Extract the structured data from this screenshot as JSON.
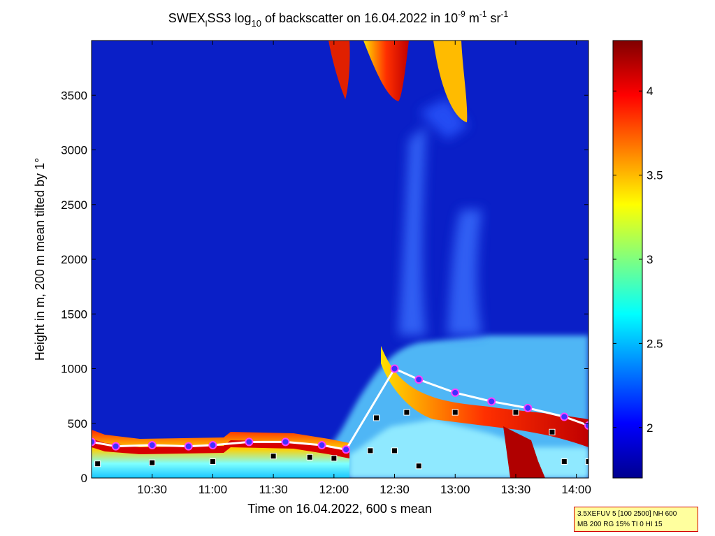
{
  "chart_data": {
    "type": "heatmap",
    "title": {
      "prefix": "SWEX",
      "prefix_sub": "l",
      "part1": "SS3 log",
      "log_sub": "10",
      "part2": " of backscatter on 16.04.2022 in 10",
      "exp1": "-9",
      "part3": " m",
      "exp2": "-1",
      "part4": " sr",
      "exp3": "-1"
    },
    "xlabel": "Time on 16.04.2022, 600 s mean",
    "ylabel": "Height in m, 200 m mean tilted by 1°",
    "x_tick_labels": [
      "10:30",
      "11:00",
      "11:30",
      "12:00",
      "12:30",
      "13:00",
      "13:30",
      "14:00"
    ],
    "x_tick_hours": [
      10.5,
      11.0,
      11.5,
      12.0,
      12.5,
      13.0,
      13.5,
      14.0
    ],
    "xlim_hours": [
      10.0,
      14.1
    ],
    "y_ticks": [
      0,
      500,
      1000,
      1500,
      2000,
      2500,
      3000,
      3500
    ],
    "ylim": [
      0,
      4000
    ],
    "colorbar": {
      "ticks": [
        2,
        2.5,
        3,
        3.5,
        4
      ],
      "tick_labels": [
        "2",
        "2.5",
        "3",
        "3.5",
        "4"
      ],
      "clim": [
        1.7,
        4.3
      ],
      "colormap": "jet"
    },
    "layers": {
      "boundary_layer_top": [
        [
          10.0,
          330
        ],
        [
          10.2,
          290
        ],
        [
          10.5,
          300
        ],
        [
          10.8,
          290
        ],
        [
          11.0,
          300
        ],
        [
          11.3,
          330
        ],
        [
          11.6,
          330
        ],
        [
          11.9,
          300
        ],
        [
          12.1,
          260
        ],
        [
          12.5,
          1000
        ],
        [
          12.7,
          900
        ],
        [
          13.0,
          780
        ],
        [
          13.3,
          700
        ],
        [
          13.6,
          640
        ],
        [
          13.9,
          560
        ],
        [
          14.1,
          480
        ]
      ],
      "cloud_base_points": [
        [
          10.05,
          130
        ],
        [
          10.5,
          140
        ],
        [
          11.0,
          150
        ],
        [
          11.5,
          200
        ],
        [
          11.8,
          190
        ],
        [
          12.0,
          180
        ],
        [
          12.3,
          250
        ],
        [
          12.5,
          250
        ],
        [
          12.7,
          110
        ],
        [
          12.35,
          550
        ],
        [
          12.6,
          600
        ],
        [
          13.0,
          600
        ],
        [
          13.5,
          600
        ],
        [
          13.8,
          420
        ],
        [
          13.9,
          150
        ],
        [
          14.1,
          150
        ]
      ]
    }
  },
  "info_box": {
    "line1": "3.5XEFUV 5 [100 2500] NH 600",
    "line2": "MB 200 RG 15% TI 0 HI 15",
    "border_color": "#d40000",
    "background": "#ffff9e"
  }
}
